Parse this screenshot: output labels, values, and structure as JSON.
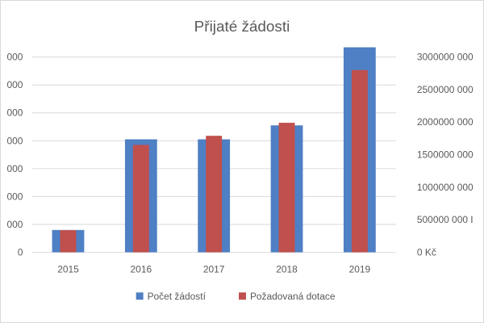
{
  "chart_data": {
    "type": "bar",
    "title": "Přijaté žádosti",
    "categories": [
      "2015",
      "2016",
      "2017",
      "2018",
      "2019"
    ],
    "series": [
      {
        "name": "Počet žádostí",
        "axis": "left",
        "color": "#4f7fc4",
        "values": [
          80,
          405,
          405,
          455,
          735
        ]
      },
      {
        "name": "Požadovaná dotace",
        "axis": "right",
        "color": "#c0504d",
        "values": [
          340000000,
          1650000000,
          1790000000,
          1990000000,
          2800000000
        ]
      }
    ],
    "y_left": {
      "range": [
        0,
        700
      ],
      "tick_labels": [
        "0",
        "000",
        "000",
        "000",
        "000",
        "000",
        "000",
        "000"
      ]
    },
    "y_right": {
      "range": [
        0,
        3000000000
      ],
      "tick_labels": [
        "0 Kč",
        "500000 000 I",
        "1000000 000",
        "1500000 000",
        "2000000 000",
        "2500000 000",
        "3000000 000"
      ]
    },
    "grid": true,
    "legend_position": "bottom"
  }
}
